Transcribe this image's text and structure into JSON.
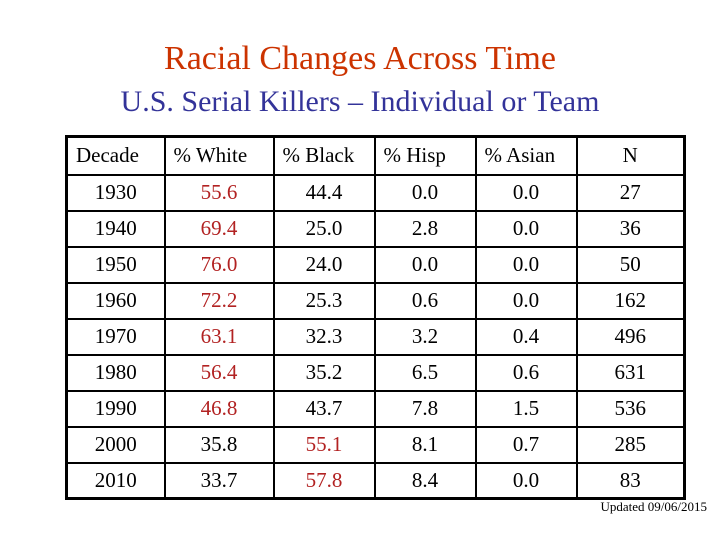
{
  "slide": {
    "title": "Racial Changes Across Time",
    "subtitle": "U.S. Serial Killers – Individual or Team",
    "updated_note": "Updated 09/06/2015",
    "colors": {
      "title": "#cc3300",
      "subtitle": "#333399",
      "highlight": "#b22222",
      "text": "#000000",
      "background": "#ffffff",
      "border": "#000000"
    }
  },
  "table": {
    "columns": [
      "Decade",
      "% White",
      "% Black",
      "% Hisp",
      "% Asian",
      "N"
    ],
    "rows": [
      {
        "decade": "1930",
        "white": "55.6",
        "black": "44.4",
        "hisp": "0.0",
        "asian": "0.0",
        "n": "27",
        "highlight": "white"
      },
      {
        "decade": "1940",
        "white": "69.4",
        "black": "25.0",
        "hisp": "2.8",
        "asian": "0.0",
        "n": "36",
        "highlight": "white"
      },
      {
        "decade": "1950",
        "white": "76.0",
        "black": "24.0",
        "hisp": "0.0",
        "asian": "0.0",
        "n": "50",
        "highlight": "white"
      },
      {
        "decade": "1960",
        "white": "72.2",
        "black": "25.3",
        "hisp": "0.6",
        "asian": "0.0",
        "n": "162",
        "highlight": "white"
      },
      {
        "decade": "1970",
        "white": "63.1",
        "black": "32.3",
        "hisp": "3.2",
        "asian": "0.4",
        "n": "496",
        "highlight": "white"
      },
      {
        "decade": "1980",
        "white": "56.4",
        "black": "35.2",
        "hisp": "6.5",
        "asian": "0.6",
        "n": "631",
        "highlight": "white"
      },
      {
        "decade": "1990",
        "white": "46.8",
        "black": "43.7",
        "hisp": "7.8",
        "asian": "1.5",
        "n": "536",
        "highlight": "white"
      },
      {
        "decade": "2000",
        "white": "35.8",
        "black": "55.1",
        "hisp": "8.1",
        "asian": "0.7",
        "n": "285",
        "highlight": "black"
      },
      {
        "decade": "2010",
        "white": "33.7",
        "black": "57.8",
        "hisp": "8.4",
        "asian": "0.0",
        "n": "83",
        "highlight": "black"
      }
    ]
  }
}
